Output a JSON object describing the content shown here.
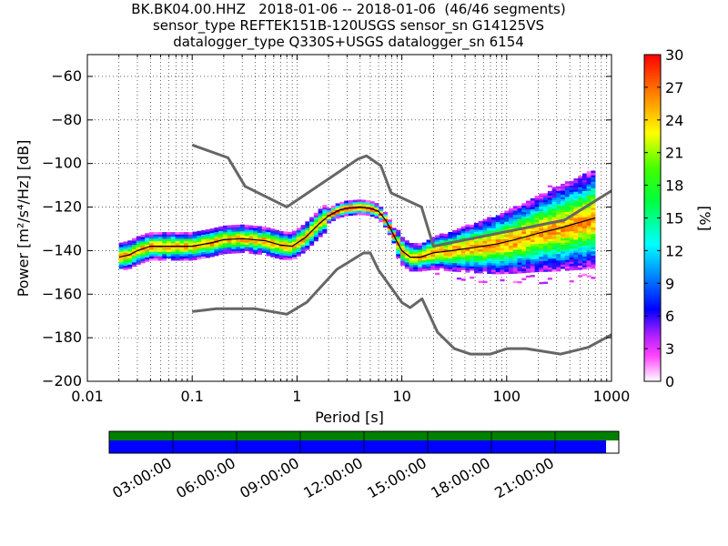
{
  "title_lines": [
    "BK.BK04.00.HHZ   2018-01-06 -- 2018-01-06  (46/46 segments)",
    "sensor_type REFTEK151B-120USGS sensor_sn G14125VS",
    "datalogger_type Q330S+USGS datalogger_sn 6154"
  ],
  "chart_data": {
    "type": "heatmap",
    "xlabel": "Period [s]",
    "ylabel": "Power [m²/s⁴/Hz] [dB]",
    "xscale": "log",
    "xlim": [
      0.01,
      1000
    ],
    "ylim": [
      -200,
      -50
    ],
    "xticks": [
      0.01,
      0.1,
      1,
      10,
      100,
      1000
    ],
    "xtick_labels": [
      "0.01",
      "0.1",
      "1",
      "10",
      "100",
      "1000"
    ],
    "yticks": [
      -200,
      -180,
      -160,
      -140,
      -120,
      -100,
      -80,
      -60
    ],
    "ytick_labels": [
      "−200",
      "−180",
      "−160",
      "−140",
      "−120",
      "−100",
      "−80",
      "−60"
    ],
    "grid": "dotted",
    "colorbar": {
      "label": "[%]",
      "range": [
        0,
        30
      ],
      "ticks": [
        0,
        3,
        6,
        9,
        12,
        15,
        18,
        21,
        24,
        27,
        30
      ],
      "tick_labels": [
        "0",
        "3",
        "6",
        "9",
        "12",
        "15",
        "18",
        "21",
        "24",
        "27",
        "30"
      ]
    },
    "nhnm": {
      "period": [
        0.1,
        0.22,
        0.32,
        0.8,
        3.8,
        4.6,
        6.3,
        7.9,
        15.4,
        20,
        354.8,
        1000
      ],
      "power": [
        -91.5,
        -97.4,
        -110.5,
        -120,
        -98,
        -96.5,
        -101,
        -113.5,
        -120,
        -138,
        -126,
        -112.5
      ]
    },
    "nlnm": {
      "period": [
        0.1,
        0.17,
        0.4,
        0.8,
        1.24,
        2.4,
        4.3,
        5,
        6,
        10,
        12,
        15.6,
        21.9,
        31.6,
        45,
        70,
        101,
        154,
        328,
        600,
        1000
      ],
      "power": [
        -168,
        -166.7,
        -166.7,
        -169.2,
        -163.7,
        -148.6,
        -141.1,
        -141.1,
        -149,
        -163.8,
        -166.2,
        -162.1,
        -177.5,
        -185,
        -187.5,
        -187.5,
        -185,
        -185,
        -187.5,
        -184.4,
        -178.6
      ]
    },
    "mode_line": {
      "period": [
        0.02,
        0.025,
        0.03,
        0.04,
        0.06,
        0.1,
        0.15,
        0.2,
        0.3,
        0.5,
        0.7,
        0.9,
        1.2,
        1.6,
        2,
        2.5,
        3,
        4,
        5,
        6,
        7,
        8,
        9,
        10,
        12,
        15,
        20,
        30,
        50,
        80,
        120,
        200,
        300,
        500,
        700
      ],
      "power": [
        -143,
        -142,
        -140,
        -138,
        -138,
        -138,
        -136.5,
        -135,
        -134.5,
        -135.5,
        -137.5,
        -138,
        -134,
        -128,
        -124,
        -121.5,
        -120.5,
        -120,
        -120.5,
        -122,
        -126,
        -131,
        -136,
        -140,
        -143,
        -143,
        -141,
        -140,
        -138.5,
        -137,
        -135,
        -132,
        -130,
        -127,
        -125
      ]
    },
    "series_colors": {
      "noise_models": "#666666",
      "mode_line": "#000000"
    }
  },
  "data_availability": {
    "time_ticks": [
      "03:00:00",
      "06:00:00",
      "09:00:00",
      "12:00:00",
      "15:00:00",
      "18:00:00",
      "21:00:00"
    ],
    "segment_coverage_fraction": 0.975,
    "colors": {
      "data": "#0000ff",
      "gaps_ok": "#008000",
      "missing": "#ffffff"
    }
  }
}
